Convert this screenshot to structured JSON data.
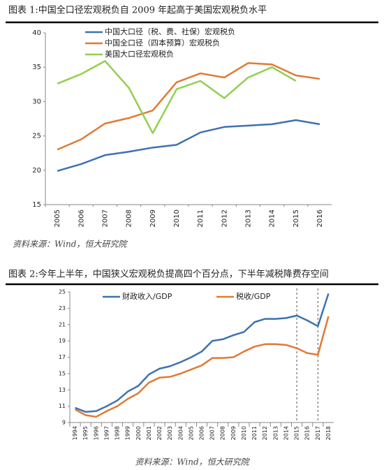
{
  "chart_data": [
    {
      "type": "line",
      "title": "图表 1:中国全口径宏观税负自 2009 年起高于美国宏观税负水平",
      "source": "资料来源：Wind，恒大研究院",
      "categories": [
        "2005",
        "2006",
        "2007",
        "2008",
        "2009",
        "2010",
        "2011",
        "2012",
        "2013",
        "2014",
        "2015",
        "2016"
      ],
      "ylim": [
        15,
        40
      ],
      "yticks": [
        15,
        20,
        25,
        30,
        35,
        40
      ],
      "series": [
        {
          "name": "中国大口径（税、费、社保）宏观税负",
          "color": "#3d72b0",
          "values": [
            19.9,
            20.9,
            22.2,
            22.7,
            23.3,
            23.7,
            25.5,
            26.3,
            26.5,
            26.7,
            27.3,
            26.7
          ]
        },
        {
          "name": "中国全口径（四本预算）宏观税负",
          "color": "#e07a35",
          "values": [
            23.0,
            24.5,
            26.8,
            27.6,
            28.7,
            32.8,
            34.1,
            33.5,
            35.6,
            35.4,
            33.8,
            33.3
          ]
        },
        {
          "name": "美国大口径宏观税负",
          "color": "#92cf50",
          "values": [
            32.6,
            34.0,
            35.9,
            32.0,
            25.4,
            31.8,
            33.0,
            30.5,
            33.5,
            35.0,
            33.0,
            null
          ]
        }
      ]
    },
    {
      "type": "line",
      "title": "图表 2:今年上半年，中国狭义宏观税负提高四个百分点，下半年减税降费存空间",
      "source": "资料来源：Wind，恒大研究院",
      "categories": [
        "1994",
        "1995",
        "1996",
        "1997",
        "1998",
        "1999",
        "2000",
        "2001",
        "2002",
        "2003",
        "2004",
        "2005",
        "2006",
        "2007",
        "2008",
        "2009",
        "2010",
        "2011",
        "2012",
        "2013",
        "2014",
        "2015",
        "2016",
        "2017",
        "2018"
      ],
      "ylim": [
        9,
        25
      ],
      "yticks": [
        9,
        11,
        13,
        15,
        17,
        19,
        21,
        23,
        25
      ],
      "vlines": [
        "2015",
        "2017"
      ],
      "series": [
        {
          "name": "财政收入/GDP",
          "color": "#3d72b0",
          "values": [
            10.8,
            10.3,
            10.4,
            11.0,
            11.7,
            12.8,
            13.5,
            14.9,
            15.6,
            15.9,
            16.4,
            17.0,
            17.7,
            19.0,
            19.2,
            19.7,
            20.1,
            21.3,
            21.7,
            21.7,
            21.8,
            22.1,
            21.5,
            20.8,
            24.8
          ]
        },
        {
          "name": "税收/GDP",
          "color": "#e07a35",
          "values": [
            10.6,
            9.9,
            9.7,
            10.4,
            11.0,
            11.9,
            12.6,
            13.9,
            14.5,
            14.6,
            15.0,
            15.5,
            16.0,
            16.9,
            16.9,
            17.0,
            17.7,
            18.3,
            18.6,
            18.6,
            18.5,
            18.1,
            17.5,
            17.3,
            22.0
          ]
        }
      ]
    }
  ]
}
